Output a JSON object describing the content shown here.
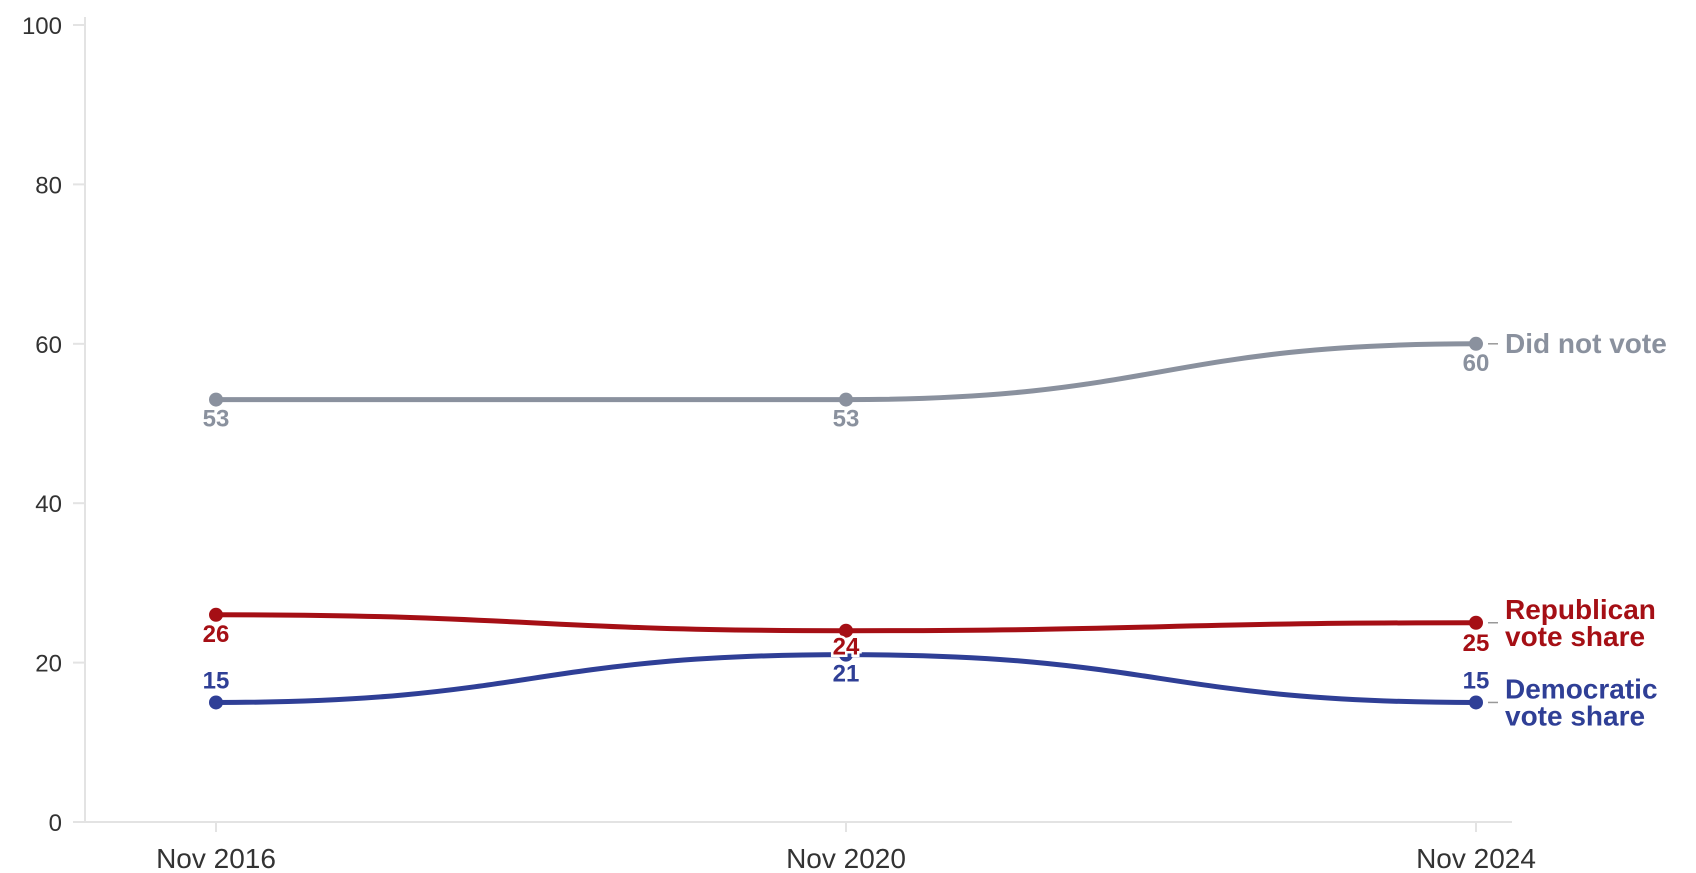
{
  "chart_data": {
    "type": "line",
    "x": [
      "Nov 2016",
      "Nov 2020",
      "Nov 2024"
    ],
    "ylim": [
      0,
      100
    ],
    "yticks": [
      0,
      20,
      40,
      60,
      80,
      100
    ],
    "grid": false,
    "series": [
      {
        "name": "Did not vote",
        "label_lines": [
          "Did not vote"
        ],
        "values": [
          53,
          53,
          60
        ],
        "color": "#8a919e",
        "label_position": "below"
      },
      {
        "name": "Republican vote share",
        "label_lines": [
          "Republican",
          "vote share"
        ],
        "values": [
          26,
          24,
          25
        ],
        "color": "#a50f15",
        "label_position": "below"
      },
      {
        "name": "Democratic vote share",
        "label_lines": [
          "Democratic",
          "vote share"
        ],
        "values": [
          15,
          21,
          15
        ],
        "color": "#2f3f96",
        "label_position": "above"
      }
    ]
  }
}
